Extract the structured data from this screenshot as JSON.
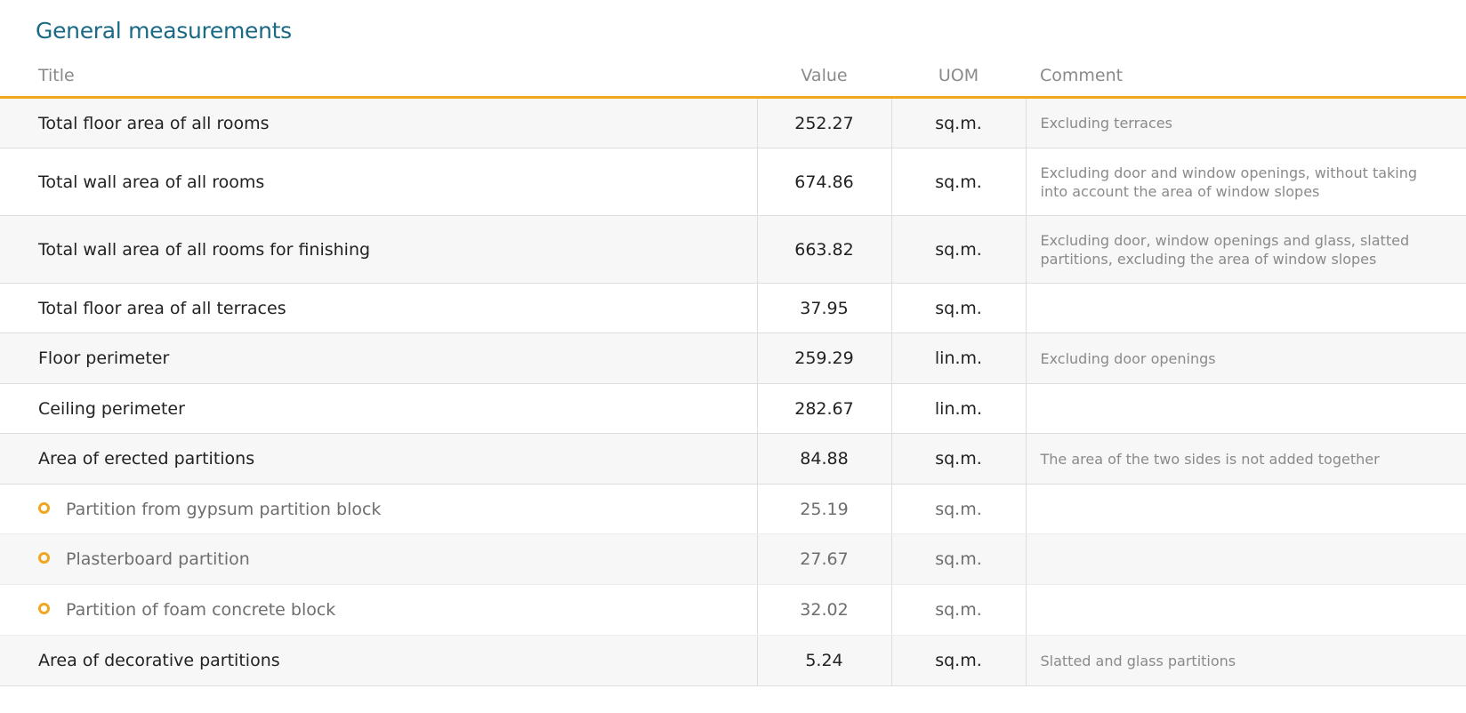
{
  "page_title": "General measurements",
  "columns": {
    "title": "Title",
    "value": "Value",
    "uom": "UOM",
    "comment": "Comment"
  },
  "accent_color": "#f0a61e",
  "title_color": "#1a6a86",
  "rows": [
    {
      "title": "Total floor area of all rooms",
      "value": "252.27",
      "uom": "sq.m.",
      "comment": "Excluding terraces",
      "sub": false
    },
    {
      "title": "Total wall area of all rooms",
      "value": "674.86",
      "uom": "sq.m.",
      "comment": "Excluding door and window openings, without taking into account the area of window slopes",
      "sub": false
    },
    {
      "title": "Total wall area of all rooms for finishing",
      "value": "663.82",
      "uom": "sq.m.",
      "comment": "Excluding door, window openings and glass, slatted partitions, excluding the area of window slopes",
      "sub": false
    },
    {
      "title": "Total floor area of all terraces",
      "value": "37.95",
      "uom": "sq.m.",
      "comment": "",
      "sub": false
    },
    {
      "title": "Floor perimeter",
      "value": "259.29",
      "uom": "lin.m.",
      "comment": "Excluding door openings",
      "sub": false
    },
    {
      "title": "Ceiling perimeter",
      "value": "282.67",
      "uom": "lin.m.",
      "comment": "",
      "sub": false
    },
    {
      "title": "Area of erected partitions",
      "value": "84.88",
      "uom": "sq.m.",
      "comment": "The area of the two sides is not added together",
      "sub": false
    },
    {
      "title": "Partition from gypsum partition block",
      "value": "25.19",
      "uom": "sq.m.",
      "comment": "",
      "sub": true
    },
    {
      "title": "Plasterboard partition",
      "value": "27.67",
      "uom": "sq.m.",
      "comment": "",
      "sub": true
    },
    {
      "title": "Partition of foam concrete block",
      "value": "32.02",
      "uom": "sq.m.",
      "comment": "",
      "sub": true
    },
    {
      "title": "Area of decorative partitions",
      "value": "5.24",
      "uom": "sq.m.",
      "comment": "Slatted and glass partitions",
      "sub": false
    }
  ]
}
